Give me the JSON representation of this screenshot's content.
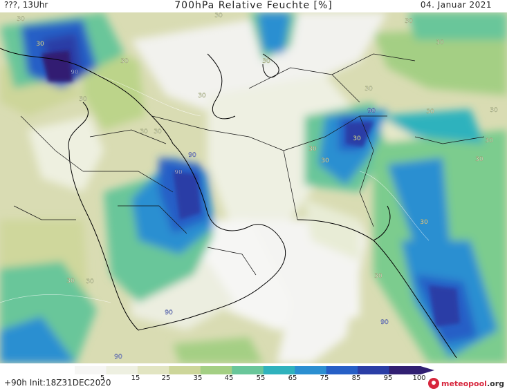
{
  "header": {
    "location_time": "???, 13Uhr",
    "title": "700hPa Relative Feuchte [%]",
    "date": "04. Januar 2021"
  },
  "footer": {
    "run_info": "+90h Init:18Z31DEC2020",
    "logo_brand": "meteopool",
    "logo_tld": ".org"
  },
  "legend": {
    "ticks": [
      "5",
      "15",
      "25",
      "35",
      "45",
      "55",
      "65",
      "75",
      "85",
      "95",
      "100"
    ],
    "colors": [
      "#f6f6f4",
      "#eef0e1",
      "#e2e5c2",
      "#cdd69a",
      "#a4cf84",
      "#69c69a",
      "#2fb2bd",
      "#2b8fd1",
      "#265fc6",
      "#2a3ea6",
      "#311f72"
    ]
  },
  "map": {
    "contour_labels": [
      "30",
      "30",
      "30",
      "30",
      "30",
      "30",
      "30",
      "30",
      "30",
      "30",
      "30",
      "30",
      "30",
      "30",
      "30",
      "30",
      "30",
      "30",
      "30",
      "30",
      "30",
      "30",
      "30",
      "90",
      "90",
      "90",
      "90",
      "90",
      "90",
      "90"
    ]
  }
}
